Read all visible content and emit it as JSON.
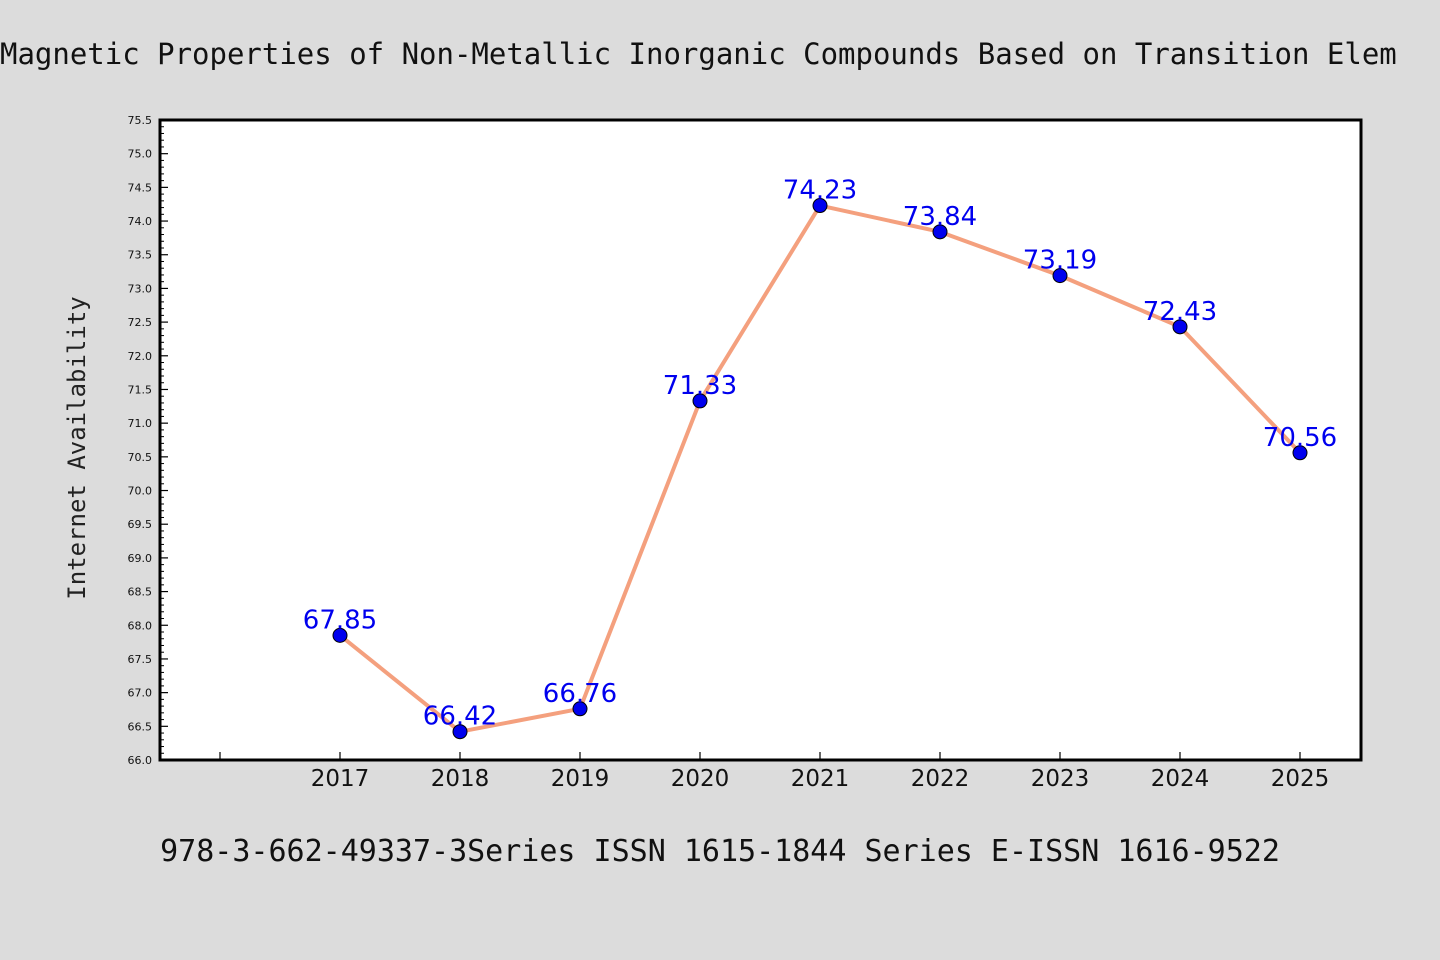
{
  "title": "Magnetic Properties of Non-Metallic Inorganic Compounds Based on Transition Elem",
  "footer": "978-3-662-49337-3Series ISSN 1615-1844 Series E-ISSN 1616-9522",
  "chart_data": {
    "type": "line",
    "title": "Magnetic Properties of Non-Metallic Inorganic Compounds Based on Transition Elem",
    "xlabel": "",
    "ylabel": "Internet Availability",
    "categories": [
      "2017",
      "2018",
      "2019",
      "2020",
      "2021",
      "2022",
      "2023",
      "2024",
      "2025"
    ],
    "series": [
      {
        "values": [
          67.85,
          66.42,
          66.76,
          71.33,
          74.23,
          73.84,
          73.19,
          72.43,
          70.56
        ]
      }
    ],
    "data_labels": [
      "67.85",
      "66.42",
      "66.76",
      "71.33",
      "74.23",
      "73.84",
      "73.19",
      "72.43",
      "70.56"
    ],
    "ylim": [
      66.0,
      75.5
    ],
    "ytick_step": 0.5,
    "grid": false,
    "legend": "none",
    "colors": {
      "line": "#f4a07e",
      "marker": "#0000ee",
      "label": "#0000ee",
      "background": "#dcdcdc",
      "plot_background": "#ffffff"
    }
  }
}
